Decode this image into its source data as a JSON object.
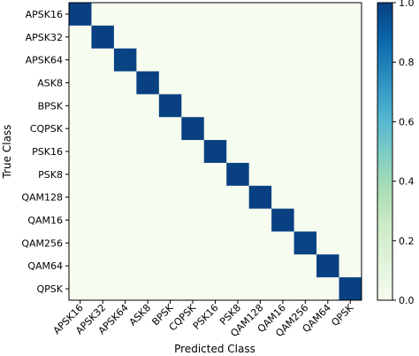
{
  "chart_data": {
    "type": "heatmap",
    "xlabel": "Predicted Class",
    "ylabel": "True Class",
    "x_categories": [
      "APSK16",
      "APSK32",
      "APSK64",
      "ASK8",
      "BPSK",
      "CQPSK",
      "PSK16",
      "PSK8",
      "QAM128",
      "QAM16",
      "QAM256",
      "QAM64",
      "QPSK"
    ],
    "y_categories": [
      "APSK16",
      "APSK32",
      "APSK64",
      "ASK8",
      "BPSK",
      "CQPSK",
      "PSK16",
      "PSK8",
      "QAM128",
      "QAM16",
      "QAM256",
      "QAM64",
      "QPSK"
    ],
    "values": [
      [
        1.0,
        0,
        0,
        0,
        0,
        0,
        0,
        0,
        0,
        0,
        0,
        0,
        0
      ],
      [
        0,
        1.0,
        0,
        0,
        0,
        0,
        0,
        0,
        0,
        0,
        0,
        0,
        0
      ],
      [
        0,
        0,
        0.99,
        0,
        0,
        0,
        0.01,
        0,
        0,
        0,
        0,
        0,
        0
      ],
      [
        0,
        0,
        0,
        1.0,
        0,
        0,
        0,
        0,
        0,
        0,
        0,
        0,
        0
      ],
      [
        0,
        0,
        0,
        0,
        1.0,
        0,
        0,
        0,
        0,
        0,
        0,
        0,
        0
      ],
      [
        0,
        0,
        0,
        0,
        0,
        1.0,
        0,
        0,
        0,
        0,
        0,
        0,
        0
      ],
      [
        0,
        0,
        0,
        0,
        0,
        0,
        1.0,
        0,
        0,
        0,
        0,
        0,
        0
      ],
      [
        0,
        0,
        0,
        0,
        0,
        0,
        0,
        1.0,
        0,
        0,
        0,
        0,
        0
      ],
      [
        0,
        0,
        0,
        0,
        0,
        0,
        0,
        0,
        1.0,
        0,
        0,
        0,
        0
      ],
      [
        0,
        0,
        0,
        0,
        0,
        0,
        0,
        0,
        0,
        1.0,
        0,
        0,
        0
      ],
      [
        0,
        0,
        0,
        0,
        0,
        0,
        0,
        0,
        0.01,
        0,
        0.99,
        0,
        0
      ],
      [
        0,
        0,
        0,
        0,
        0,
        0,
        0,
        0,
        0,
        0,
        0,
        1.0,
        0
      ],
      [
        0,
        0,
        0,
        0,
        0,
        0,
        0,
        0,
        0,
        0,
        0,
        0,
        1.0
      ]
    ],
    "colorbar": {
      "range": [
        0.0,
        1.0
      ],
      "ticks": [
        "0.0",
        "0.2",
        "0.4",
        "0.6",
        "0.8",
        "1.0"
      ],
      "colormap": "GnBu"
    }
  }
}
